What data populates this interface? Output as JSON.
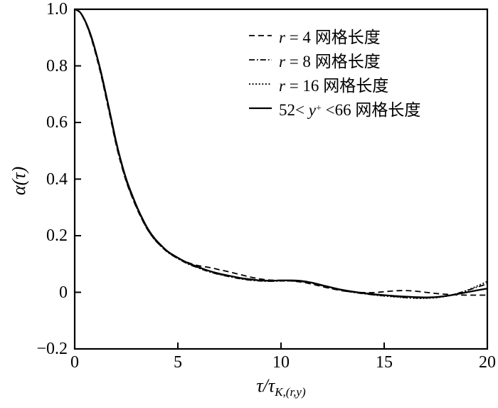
{
  "chart_data": {
    "type": "line",
    "ylabel": "α(τ)",
    "xlabel_main": "τ/τ",
    "xlabel_sub": "K,(r,y)",
    "xlim": [
      0,
      20
    ],
    "ylim": [
      -0.2,
      1.0
    ],
    "grid": false,
    "legend_position": "upper-right-inside",
    "line_color": "#000000",
    "background_color": "#ffffff",
    "xticks": {
      "values": [
        0,
        5,
        10,
        15,
        20
      ],
      "labels": [
        "0",
        "5",
        "10",
        "15",
        "20"
      ]
    },
    "yticks": {
      "values": [
        1.0,
        0.8,
        0.6,
        0.4,
        0.2,
        0,
        -0.2
      ],
      "labels": [
        "1.0",
        "0.8",
        "0.6",
        "0.4",
        "0.2",
        "0",
        "−0.2"
      ]
    },
    "x": [
      0,
      0.25,
      0.5,
      0.75,
      1,
      1.25,
      1.5,
      1.75,
      2,
      2.25,
      2.5,
      2.75,
      3,
      3.25,
      3.5,
      3.75,
      4,
      4.5,
      5,
      5.5,
      6,
      6.5,
      7,
      7.5,
      8,
      8.5,
      9,
      9.5,
      10,
      10.5,
      11,
      11.5,
      12,
      12.5,
      13,
      13.5,
      14,
      14.5,
      15,
      15.5,
      16,
      16.5,
      17,
      17.5,
      18,
      18.5,
      19,
      19.5,
      20
    ],
    "series": [
      {
        "name": "r = 4 grid lengths",
        "line_style": "dashed",
        "legend": {
          "pre": "",
          "it": "r",
          "sup": "",
          "post": " = 4 ",
          "cn": "网格长度"
        },
        "y": [
          1.0,
          0.989,
          0.957,
          0.909,
          0.847,
          0.775,
          0.694,
          0.609,
          0.524,
          0.452,
          0.391,
          0.342,
          0.298,
          0.259,
          0.225,
          0.198,
          0.176,
          0.143,
          0.121,
          0.105,
          0.094,
          0.088,
          0.08,
          0.072,
          0.063,
          0.054,
          0.047,
          0.043,
          0.042,
          0.04,
          0.036,
          0.029,
          0.02,
          0.012,
          0.005,
          0.001,
          -0.001,
          -0.001,
          0.002,
          0.005,
          0.006,
          0.004,
          0.0,
          -0.004,
          -0.007,
          -0.009,
          -0.01,
          -0.01,
          -0.01
        ]
      },
      {
        "name": "r = 8 grid lengths",
        "line_style": "dash-dot",
        "legend": {
          "pre": "",
          "it": "r",
          "sup": "",
          "post": " = 8 ",
          "cn": "网格长度"
        },
        "y": [
          1.0,
          0.989,
          0.958,
          0.911,
          0.85,
          0.779,
          0.698,
          0.613,
          0.528,
          0.455,
          0.394,
          0.344,
          0.299,
          0.26,
          0.226,
          0.198,
          0.176,
          0.142,
          0.119,
          0.1,
          0.086,
          0.073,
          0.063,
          0.055,
          0.048,
          0.043,
          0.04,
          0.039,
          0.04,
          0.04,
          0.038,
          0.032,
          0.023,
          0.014,
          0.006,
          0.0,
          -0.005,
          -0.009,
          -0.012,
          -0.015,
          -0.018,
          -0.02,
          -0.02,
          -0.018,
          -0.013,
          -0.005,
          0.006,
          0.018,
          0.03
        ]
      },
      {
        "name": "r = 16 grid lengths",
        "line_style": "dotted",
        "legend": {
          "pre": "",
          "it": "r",
          "sup": "",
          "post": " = 16 ",
          "cn": "网格长度"
        },
        "y": [
          1.0,
          0.99,
          0.959,
          0.912,
          0.852,
          0.781,
          0.7,
          0.615,
          0.53,
          0.457,
          0.396,
          0.346,
          0.301,
          0.262,
          0.228,
          0.2,
          0.177,
          0.143,
          0.12,
          0.101,
          0.087,
          0.074,
          0.064,
          0.056,
          0.049,
          0.044,
          0.041,
          0.04,
          0.041,
          0.041,
          0.039,
          0.033,
          0.024,
          0.015,
          0.007,
          0.001,
          -0.004,
          -0.009,
          -0.013,
          -0.016,
          -0.019,
          -0.021,
          -0.021,
          -0.019,
          -0.014,
          -0.006,
          0.006,
          0.022,
          0.038
        ]
      },
      {
        "name": "52 < y+ < 66 grid lengths",
        "line_style": "solid",
        "legend": {
          "pre": "52< ",
          "it": "y",
          "sup": "+",
          "post": " <66 ",
          "cn": "网格长度"
        },
        "y": [
          1.0,
          0.99,
          0.96,
          0.915,
          0.855,
          0.785,
          0.705,
          0.62,
          0.535,
          0.462,
          0.4,
          0.35,
          0.305,
          0.265,
          0.23,
          0.202,
          0.18,
          0.145,
          0.122,
          0.103,
          0.089,
          0.076,
          0.066,
          0.058,
          0.051,
          0.046,
          0.042,
          0.041,
          0.042,
          0.042,
          0.04,
          0.034,
          0.025,
          0.016,
          0.008,
          0.002,
          -0.003,
          -0.007,
          -0.01,
          -0.013,
          -0.015,
          -0.017,
          -0.018,
          -0.017,
          -0.013,
          -0.007,
          0.0,
          0.007,
          0.013
        ]
      }
    ]
  }
}
